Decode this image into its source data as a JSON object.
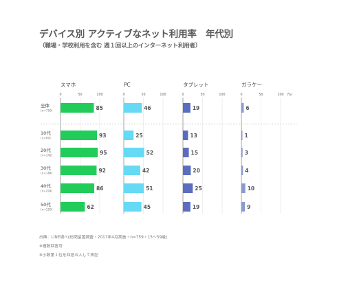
{
  "title": "デバイス別 アクティブなネット利用率　年代別",
  "subtitle": "（職場・学校利用を含む 週１回以上のインターネット利用者）",
  "notes": [
    "出典：LINE調べ(訪問留置調査・2017年4月実施・n=759・15〜59歳)",
    "※複数回答可",
    "※小数第１位を四捨五入して表記"
  ],
  "chart_data": {
    "type": "bar",
    "orientation": "horizontal",
    "xlim": [
      0,
      100
    ],
    "xticks": [
      0,
      50,
      100
    ],
    "unit_label": "(%)",
    "categories": [
      {
        "label": "全体",
        "n": "(n=759)"
      },
      {
        "label": "10代",
        "n": "(n=69)"
      },
      {
        "label": "20代",
        "n": "(n=142)"
      },
      {
        "label": "30代",
        "n": "(n=184)"
      },
      {
        "label": "40代",
        "n": "(n=204)"
      },
      {
        "label": "50代",
        "n": "(n=159)"
      }
    ],
    "series": [
      {
        "name": "スマホ",
        "color": "#22cc5a",
        "values": [
          85,
          93,
          95,
          92,
          86,
          62
        ]
      },
      {
        "name": "PC",
        "color": "#66d9f4",
        "values": [
          46,
          25,
          52,
          42,
          51,
          45
        ]
      },
      {
        "name": "タブレット",
        "color": "#5b6dc0",
        "values": [
          19,
          13,
          15,
          20,
          25,
          19
        ]
      },
      {
        "name": "ガラケー",
        "color": "#8b9ad0",
        "values": [
          6,
          1,
          3,
          4,
          10,
          9
        ]
      }
    ]
  }
}
